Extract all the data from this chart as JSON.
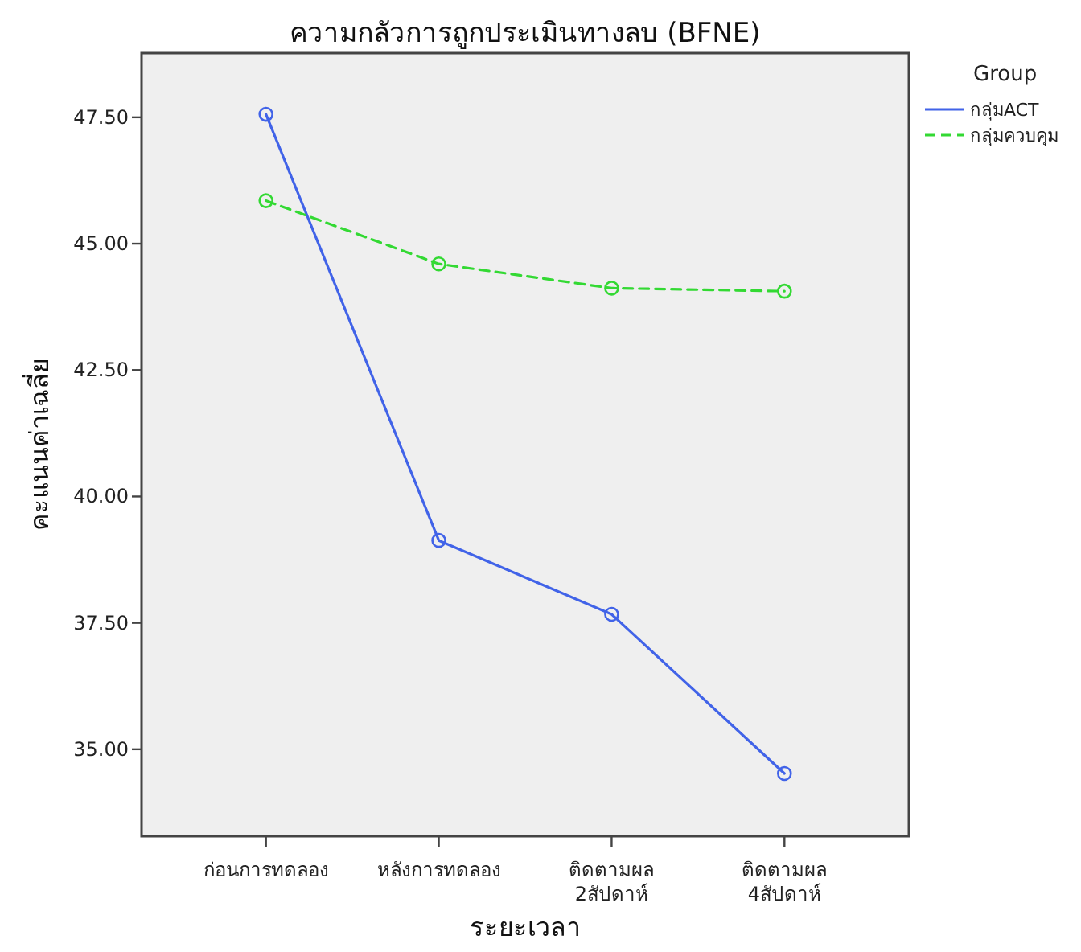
{
  "chart_data": {
    "type": "line",
    "title": "ความกลัวการถูกประเมินทางลบ (BFNE)",
    "xlabel": "ระยะเวลา",
    "ylabel": "คะแนนค่าเฉลี่ย",
    "legend_title": "Group",
    "categories": [
      "ก่อนการทดลอง",
      "หลังการทดลอง",
      "ติดตามผล 2สัปดาห์",
      "ติดตามผล 4สัปดาห์"
    ],
    "series": [
      {
        "name": "กลุ่มACT",
        "color": "#4163e8",
        "line_style": "solid",
        "values": [
          47.56,
          39.13,
          37.67,
          34.52
        ]
      },
      {
        "name": "กลุ่มควบคุม",
        "color": "#33d933",
        "line_style": "dashed",
        "values": [
          45.85,
          44.6,
          44.12,
          44.06
        ]
      }
    ],
    "ylim": [
      33.28,
      48.77
    ],
    "yticks": [
      {
        "value": 35,
        "label": "35.00"
      },
      {
        "value": 37.5,
        "label": "37.50"
      },
      {
        "value": 40,
        "label": "40.00"
      },
      {
        "value": 42.5,
        "label": "42.50"
      },
      {
        "value": 45,
        "label": "45.00"
      },
      {
        "value": 47.5,
        "label": "47.50"
      }
    ],
    "marker": "circle",
    "grid": false,
    "legend": "right"
  }
}
